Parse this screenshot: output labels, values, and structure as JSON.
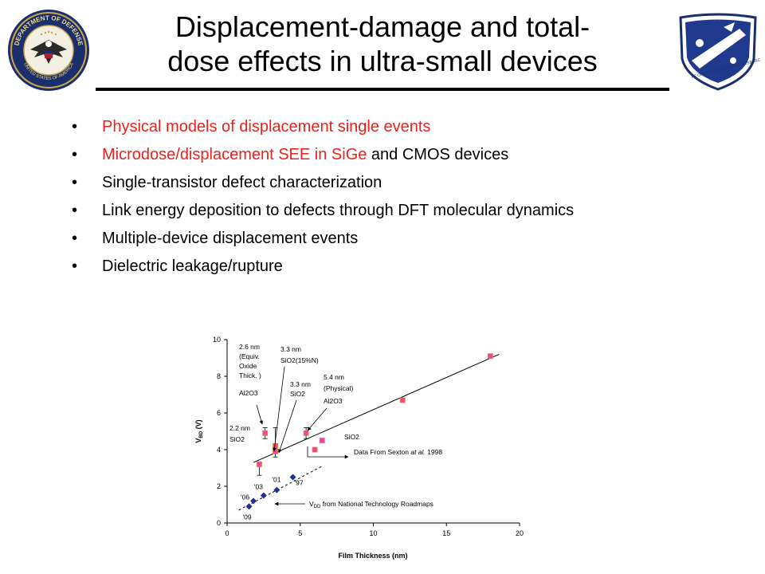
{
  "title": {
    "line1": "Displacement-damage and total-",
    "line2": "dose effects in ultra-small devices"
  },
  "seals": {
    "left": {
      "icon": "dod-seal-icon",
      "text": "DEPARTMENT OF DEFENSE",
      "text_bottom": "UNITED STATES OF AMERICA"
    },
    "right": {
      "icon": "afosr-shield-icon",
      "text": "AF OFFICE OF SCIENTIFIC RESEARCH"
    }
  },
  "colors": {
    "accent_red": "#e8221c",
    "marker_pink": "#ff3fa0",
    "marker_blue": "#1f2f8f"
  },
  "bullets": [
    {
      "bullet": "•",
      "red": "Physical models of displacement single events",
      "rest": ""
    },
    {
      "bullet": "•",
      "red": "Microdose/displacement SEE in SiGe",
      "rest": " and CMOS devices"
    },
    {
      "bullet": "•",
      "red": "",
      "rest": "Single-transistor defect characterization"
    },
    {
      "bullet": "•",
      "red": "",
      "rest": "Link energy deposition to defects through DFT molecular dynamics"
    },
    {
      "bullet": "•",
      "red": "",
      "rest": "Multiple-device displacement events"
    },
    {
      "bullet": "•",
      "red": "",
      "rest": "Dielectric leakage/rupture"
    }
  ],
  "chart_data": {
    "type": "scatter",
    "xlabel": "Film Thickness (nm)",
    "ylabel_main": "V",
    "ylabel_sub": "BD",
    "ylabel_unit": " (V)",
    "xlim": [
      0,
      20
    ],
    "ylim": [
      0,
      10
    ],
    "xticks": [
      "0",
      "5",
      "10",
      "15",
      "20"
    ],
    "yticks": [
      "0",
      "2",
      "4",
      "6",
      "8",
      "10"
    ],
    "grid": false,
    "series": [
      {
        "marker": "square-pink",
        "points": [
          {
            "x": 2.2,
            "y": 3.2
          },
          {
            "x": 2.6,
            "y": 4.9
          },
          {
            "x": 3.3,
            "y": 4.2
          },
          {
            "x": 3.3,
            "y": 3.9
          },
          {
            "x": 5.4,
            "y": 4.9
          },
          {
            "x": 6.0,
            "y": 4.0
          },
          {
            "x": 6.5,
            "y": 4.5
          },
          {
            "x": 12.0,
            "y": 6.7
          },
          {
            "x": 18.0,
            "y": 9.1
          }
        ],
        "error_bars": [
          {
            "x": 2.2,
            "low": 2.6,
            "high": 3.2
          },
          {
            "x": 2.6,
            "low": 4.6,
            "high": 5.2
          },
          {
            "x": 3.3,
            "low": 3.6,
            "high": 5.2
          },
          {
            "x": 5.4,
            "low": 4.6,
            "high": 5.2
          }
        ]
      },
      {
        "marker": "diamond-blue",
        "points": [
          {
            "x": 1.5,
            "y": 0.9,
            "label": "'09"
          },
          {
            "x": 1.8,
            "y": 1.2,
            "label": "'06"
          },
          {
            "x": 2.5,
            "y": 1.5,
            "label": "'03"
          },
          {
            "x": 3.4,
            "y": 1.8,
            "label": "'01"
          },
          {
            "x": 4.5,
            "y": 2.5,
            "label": "'97"
          }
        ]
      }
    ],
    "fit_line": {
      "x1": 1.8,
      "y1": 3.3,
      "x2": 18.6,
      "y2": 9.2
    },
    "dashed_line": {
      "x1": 0.8,
      "y1": 0.7,
      "x2": 6.5,
      "y2": 3.1
    },
    "annotations": [
      {
        "id": "ann-26",
        "lines": [
          "2.6 nm",
          "(Equiv.",
          "Oxide",
          "Thick. )",
          "Al2O3"
        ]
      },
      {
        "id": "ann-33n",
        "lines": [
          "3.3 nm",
          "SiO2(15%N)"
        ]
      },
      {
        "id": "ann-33",
        "lines": [
          "3.3 nm",
          "SiO2"
        ]
      },
      {
        "id": "ann-54",
        "lines": [
          "5.4 nm",
          "(Physical)",
          "Al2O3"
        ]
      },
      {
        "id": "ann-22",
        "lines": [
          "2.2 nm",
          "SiO2"
        ]
      },
      {
        "id": "ann-sio2",
        "lines": [
          "SiO2"
        ]
      },
      {
        "id": "ann-sexton",
        "prefix": "Data From Sexton ",
        "italic": "at al.",
        "suffix": " 1998"
      },
      {
        "id": "ann-vdd",
        "main": "V",
        "sub": "DD",
        "rest": "  from National Technology Roadmaps"
      }
    ]
  }
}
